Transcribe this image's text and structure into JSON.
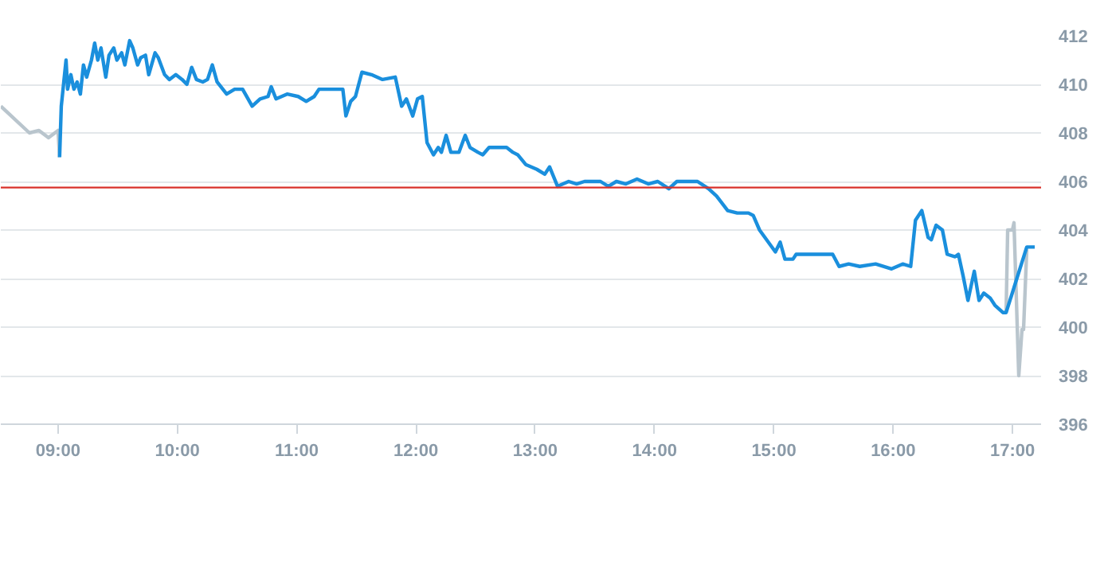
{
  "chart_data": {
    "type": "line",
    "grid": "y",
    "line_style": "solid",
    "xlim": [
      8.52,
      17.24
    ],
    "ylim": [
      396,
      412
    ],
    "xticks": [
      {
        "value": 9,
        "label": "09:00"
      },
      {
        "value": 10,
        "label": "10:00"
      },
      {
        "value": 11,
        "label": "11:00"
      },
      {
        "value": 12,
        "label": "12:00"
      },
      {
        "value": 13,
        "label": "13:00"
      },
      {
        "value": 14,
        "label": "14:00"
      },
      {
        "value": 15,
        "label": "15:00"
      },
      {
        "value": 16,
        "label": "16:00"
      },
      {
        "value": 17,
        "label": "17:00"
      }
    ],
    "yticks": [
      396,
      398,
      400,
      402,
      404,
      406,
      408,
      410,
      412
    ],
    "ref_lines": [
      {
        "axis": "y",
        "value": 405.75,
        "color": "#d9312b"
      }
    ],
    "series": [
      {
        "color": "#b9c5cd",
        "x": [
          8.52,
          8.76,
          8.84,
          8.92,
          9.0,
          9.013
        ],
        "values": [
          409.1,
          408.0,
          408.1,
          407.8,
          408.1,
          407.0
        ]
      },
      {
        "color": "#b9c5cd",
        "x": [
          16.947,
          16.96,
          17.0,
          17.013,
          17.053,
          17.08,
          17.093,
          17.12
        ],
        "values": [
          400.6,
          404.0,
          404.0,
          404.3,
          398.0,
          399.9,
          399.9,
          403.2
        ]
      },
      {
        "color": "#1a8fdd",
        "x": [
          9.013,
          9.027,
          9.067,
          9.08,
          9.107,
          9.133,
          9.16,
          9.187,
          9.213,
          9.24,
          9.28,
          9.307,
          9.333,
          9.36,
          9.4,
          9.427,
          9.467,
          9.493,
          9.533,
          9.56,
          9.6,
          9.627,
          9.667,
          9.693,
          9.733,
          9.76,
          9.813,
          9.84,
          9.893,
          9.933,
          9.987,
          10.04,
          10.08,
          10.12,
          10.16,
          10.213,
          10.253,
          10.293,
          10.333,
          10.413,
          10.48,
          10.547,
          10.627,
          10.693,
          10.76,
          10.787,
          10.827,
          10.92,
          11.013,
          11.08,
          11.147,
          11.187,
          11.253,
          11.32,
          11.387,
          11.413,
          11.453,
          11.493,
          11.547,
          11.627,
          11.72,
          11.827,
          11.88,
          11.92,
          11.973,
          12.013,
          12.053,
          12.093,
          12.147,
          12.187,
          12.213,
          12.253,
          12.293,
          12.36,
          12.413,
          12.453,
          12.52,
          12.56,
          12.613,
          12.693,
          12.76,
          12.813,
          12.853,
          12.92,
          13.013,
          13.08,
          13.12,
          13.187,
          13.28,
          13.347,
          13.413,
          13.547,
          13.613,
          13.68,
          13.76,
          13.853,
          13.947,
          14.027,
          14.12,
          14.187,
          14.36,
          14.453,
          14.52,
          14.613,
          14.693,
          14.787,
          14.827,
          14.88,
          15.013,
          15.053,
          15.093,
          15.16,
          15.187,
          15.36,
          15.493,
          15.547,
          15.627,
          15.72,
          15.853,
          15.987,
          16.08,
          16.147,
          16.187,
          16.24,
          16.293,
          16.32,
          16.36,
          16.413,
          16.453,
          16.52,
          16.547,
          16.587,
          16.627,
          16.68,
          16.72,
          16.76,
          16.813,
          16.853,
          16.92,
          16.947,
          17.12,
          17.187
        ],
        "values": [
          407.0,
          409.1,
          411.0,
          409.8,
          410.4,
          409.8,
          410.1,
          409.6,
          410.8,
          410.3,
          411.0,
          411.7,
          411.0,
          411.5,
          410.3,
          411.2,
          411.5,
          411.0,
          411.3,
          410.8,
          411.8,
          411.5,
          410.8,
          411.1,
          411.2,
          410.4,
          411.3,
          411.1,
          410.4,
          410.2,
          410.4,
          410.2,
          410.0,
          410.7,
          410.2,
          410.1,
          410.2,
          410.8,
          410.1,
          409.6,
          409.8,
          409.8,
          409.1,
          409.4,
          409.5,
          409.9,
          409.4,
          409.6,
          409.5,
          409.3,
          409.5,
          409.8,
          409.8,
          409.8,
          409.8,
          408.7,
          409.3,
          409.5,
          410.5,
          410.4,
          410.2,
          410.3,
          409.1,
          409.4,
          408.7,
          409.4,
          409.5,
          407.6,
          407.1,
          407.4,
          407.2,
          407.9,
          407.2,
          407.2,
          407.9,
          407.4,
          407.2,
          407.1,
          407.4,
          407.4,
          407.4,
          407.2,
          407.1,
          406.7,
          406.5,
          406.3,
          406.6,
          405.8,
          406.0,
          405.9,
          406.0,
          406.0,
          405.8,
          406.0,
          405.9,
          406.1,
          405.9,
          406.0,
          405.7,
          406.0,
          406.0,
          405.7,
          405.4,
          404.8,
          404.7,
          404.7,
          404.6,
          404.0,
          403.1,
          403.5,
          402.8,
          402.8,
          403.0,
          403.0,
          403.0,
          402.5,
          402.6,
          402.5,
          402.6,
          402.4,
          402.6,
          402.5,
          404.4,
          404.8,
          403.7,
          403.6,
          404.2,
          404.0,
          403.0,
          402.9,
          403.0,
          402.1,
          401.1,
          402.3,
          401.1,
          401.4,
          401.2,
          400.9,
          400.6,
          400.6,
          403.3,
          403.3
        ]
      }
    ]
  }
}
